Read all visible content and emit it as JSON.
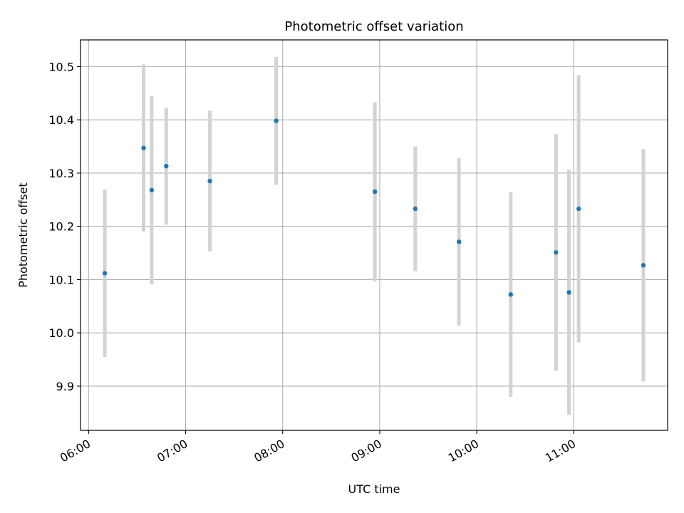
{
  "chart_data": {
    "type": "scatter",
    "title": "Photometric offset variation",
    "xlabel": "UTC time",
    "ylabel": "Photometric offset",
    "x_ticks": [
      "06:00",
      "07:00",
      "08:00",
      "09:00",
      "10:00",
      "11:00"
    ],
    "y_ticks": [
      "9.9",
      "10.0",
      "10.1",
      "10.2",
      "10.3",
      "10.4",
      "10.5"
    ],
    "xlim": [
      "05:55",
      "11:58"
    ],
    "ylim": [
      9.817,
      10.55
    ],
    "grid": true,
    "marker_color": "#1f77b4",
    "errorbar_color": "#d3d3d3",
    "points": [
      {
        "x": "06:10",
        "y": 10.112,
        "err": 0.157
      },
      {
        "x": "06:34",
        "y": 10.347,
        "err": 0.157
      },
      {
        "x": "06:39",
        "y": 10.268,
        "err": 0.177
      },
      {
        "x": "06:48",
        "y": 10.313,
        "err": 0.11
      },
      {
        "x": "07:15",
        "y": 10.285,
        "err": 0.132
      },
      {
        "x": "07:56",
        "y": 10.398,
        "err": 0.12
      },
      {
        "x": "08:57",
        "y": 10.265,
        "err": 0.168
      },
      {
        "x": "09:22",
        "y": 10.233,
        "err": 0.117
      },
      {
        "x": "09:49",
        "y": 10.171,
        "err": 0.157
      },
      {
        "x": "10:21",
        "y": 10.072,
        "err": 0.192
      },
      {
        "x": "10:49",
        "y": 10.151,
        "err": 0.222
      },
      {
        "x": "10:57",
        "y": 10.076,
        "err": 0.23
      },
      {
        "x": "11:03",
        "y": 10.233,
        "err": 0.251
      },
      {
        "x": "11:43",
        "y": 10.127,
        "err": 0.218
      }
    ]
  }
}
